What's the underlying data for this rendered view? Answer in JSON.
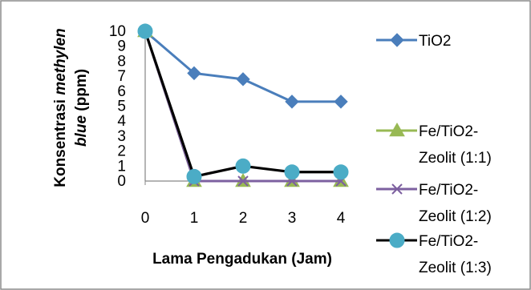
{
  "chart_data": {
    "type": "line",
    "xlabel": "Lama Pengadukan (Jam)",
    "ylabel_parts": [
      {
        "text": "Konsentrasi ",
        "italic": false
      },
      {
        "text": "methylen",
        "italic": true
      },
      {
        "text": "blue",
        "italic": true
      },
      {
        "text": " (ppm)",
        "italic": false
      }
    ],
    "x": [
      0,
      1,
      2,
      3,
      4
    ],
    "x_ticks": [
      "0",
      "1",
      "2",
      "3",
      "4"
    ],
    "y_ticks": [
      "0",
      "1",
      "2",
      "3",
      "4",
      "5",
      "6",
      "7",
      "8",
      "9",
      "10"
    ],
    "ylim": [
      0,
      10
    ],
    "grid": false,
    "legend_position": "right",
    "series": [
      {
        "name_lines": [
          "TiO2"
        ],
        "marker": "diamond",
        "color": "#4a7ebb",
        "values": [
          10,
          7.2,
          6.8,
          5.3,
          5.3
        ]
      },
      {
        "name_lines": [
          "Fe/TiO2-",
          "Zeolit (1:1)"
        ],
        "marker": "triangle",
        "color": "#98b954",
        "values": [
          10,
          0,
          0,
          0,
          0
        ]
      },
      {
        "name_lines": [
          "Fe/TiO2-",
          "Zeolit (1:2)"
        ],
        "marker": "x",
        "color": "#7d60a0",
        "values": [
          10,
          0,
          0,
          0,
          0
        ]
      },
      {
        "name_lines": [
          "Fe/TiO2-",
          "Zeolit (1:3)"
        ],
        "marker": "circle",
        "color": "#000000",
        "marker_color": "#4bacc6",
        "values": [
          10,
          0.3,
          1.0,
          0.6,
          0.6
        ]
      }
    ]
  }
}
